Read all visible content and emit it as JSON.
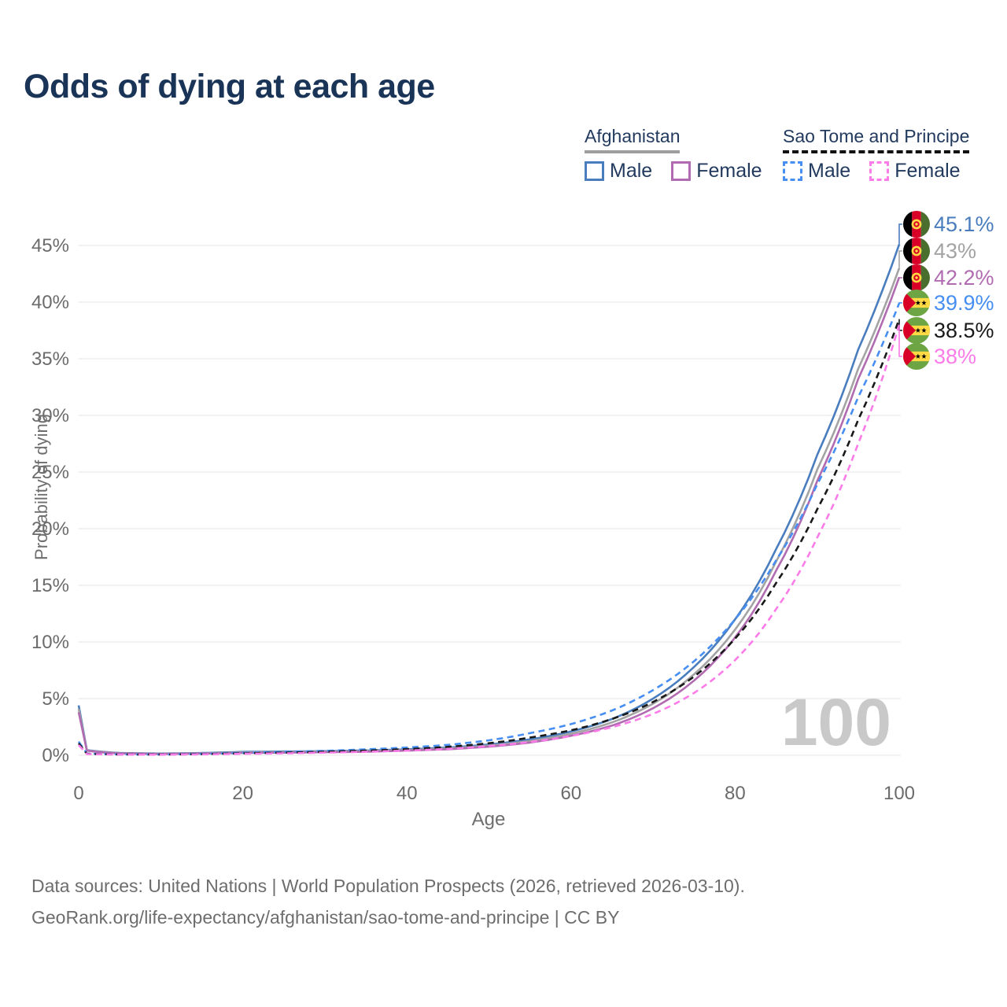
{
  "title": "Odds of dying at each age",
  "watermark": "100",
  "legend": {
    "groups": [
      {
        "country": "Afghanistan",
        "line_color": "#9e9e9e",
        "line_style": "solid",
        "items": [
          {
            "label": "Male",
            "color": "#4a7dbe",
            "dashed": false
          },
          {
            "label": "Female",
            "color": "#b16bb1",
            "dashed": false
          }
        ]
      },
      {
        "country": "Sao Tome and Principe",
        "line_color": "#111111",
        "line_style": "dashed",
        "items": [
          {
            "label": "Male",
            "color": "#478ef2",
            "dashed": true
          },
          {
            "label": "Female",
            "color": "#fb7ce8",
            "dashed": true
          }
        ]
      }
    ]
  },
  "footer": {
    "line1": "Data sources: United Nations | World Population Prospects (2026, retrieved 2026-03-10).",
    "line2": "GeoRank.org/life-expectancy/afghanistan/sao-tome-and-principe | CC BY"
  },
  "chart_data": {
    "type": "line",
    "title": "Odds of dying at each age",
    "xlabel": "Age",
    "ylabel": "Probability of dying",
    "xlim": [
      0,
      100
    ],
    "ylim": [
      0,
      47
    ],
    "grid": "horizontal-only",
    "legend_position": "top-right",
    "x_ticks": [
      0,
      20,
      40,
      60,
      80,
      100
    ],
    "x_tick_labels": [
      "0",
      "20",
      "40",
      "60",
      "80",
      "100"
    ],
    "y_ticks": [
      0,
      5,
      10,
      15,
      20,
      25,
      30,
      35,
      40,
      45
    ],
    "y_tick_labels": [
      "0%",
      "5%",
      "10%",
      "15%",
      "20%",
      "25%",
      "30%",
      "35%",
      "40%",
      "45%"
    ],
    "x": [
      0,
      1,
      5,
      10,
      15,
      20,
      25,
      30,
      35,
      40,
      45,
      50,
      55,
      60,
      65,
      70,
      75,
      80,
      85,
      90,
      95,
      100
    ],
    "series": [
      {
        "name": "Afghanistan Male",
        "country": "Afghanistan",
        "sex": "Male",
        "color": "#4a7dbe",
        "dashed": false,
        "flag": "afghanistan",
        "end_label": "45.1%",
        "values": [
          4.4,
          0.45,
          0.2,
          0.15,
          0.2,
          0.3,
          0.33,
          0.36,
          0.42,
          0.52,
          0.68,
          0.95,
          1.4,
          2.1,
          3.2,
          5.0,
          7.8,
          12.0,
          18.2,
          26.5,
          35.8,
          45.1
        ]
      },
      {
        "name": "Afghanistan",
        "country": "Afghanistan",
        "sex": "Both",
        "color": "#a3a3a3",
        "dashed": false,
        "flag": "afghanistan",
        "end_label": "43%",
        "values": [
          4.1,
          0.42,
          0.18,
          0.13,
          0.17,
          0.25,
          0.28,
          0.31,
          0.36,
          0.46,
          0.6,
          0.85,
          1.25,
          1.9,
          2.9,
          4.55,
          7.15,
          11.1,
          17.1,
          25.2,
          34.1,
          43.0
        ]
      },
      {
        "name": "Afghanistan Female",
        "country": "Afghanistan",
        "sex": "Female",
        "color": "#b16bb1",
        "dashed": false,
        "flag": "afghanistan",
        "end_label": "42.2%",
        "values": [
          3.8,
          0.4,
          0.16,
          0.12,
          0.15,
          0.21,
          0.23,
          0.27,
          0.31,
          0.41,
          0.53,
          0.76,
          1.12,
          1.72,
          2.62,
          4.15,
          6.6,
          10.4,
          16.3,
          24.2,
          33.2,
          42.2
        ]
      },
      {
        "name": "Sao Tome and Principe Male",
        "country": "Sao Tome and Principe",
        "sex": "Male",
        "color": "#478ef2",
        "dashed": true,
        "flag": "sao-tome-and-principe",
        "end_label": "39.9%",
        "values": [
          1.2,
          0.15,
          0.08,
          0.07,
          0.12,
          0.21,
          0.29,
          0.39,
          0.52,
          0.68,
          0.92,
          1.32,
          1.95,
          2.75,
          3.95,
          5.75,
          8.3,
          12.0,
          17.2,
          23.9,
          31.6,
          39.9
        ]
      },
      {
        "name": "Sao Tome and Principe",
        "country": "Sao Tome and Principe",
        "sex": "Both",
        "color": "#191919",
        "dashed": true,
        "flag": "sao-tome-and-principe",
        "end_label": "38.5%",
        "values": [
          1.05,
          0.13,
          0.07,
          0.06,
          0.1,
          0.17,
          0.23,
          0.31,
          0.41,
          0.54,
          0.74,
          1.06,
          1.56,
          2.2,
          3.2,
          4.7,
          6.95,
          10.3,
          15.2,
          21.7,
          29.6,
          38.5
        ]
      },
      {
        "name": "Sao Tome and Principe Female",
        "country": "Sao Tome and Principe",
        "sex": "Female",
        "color": "#fb7ce8",
        "dashed": true,
        "flag": "sao-tome-and-principe",
        "end_label": "38%",
        "values": [
          0.9,
          0.11,
          0.06,
          0.05,
          0.08,
          0.13,
          0.17,
          0.23,
          0.31,
          0.41,
          0.56,
          0.81,
          1.17,
          1.7,
          2.48,
          3.65,
          5.5,
          8.4,
          12.9,
          19.2,
          27.5,
          38.0
        ]
      }
    ]
  }
}
